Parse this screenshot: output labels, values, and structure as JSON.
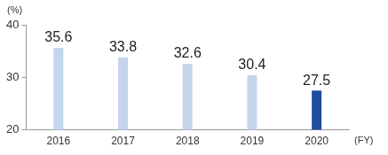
{
  "chart_data": {
    "type": "bar",
    "categories": [
      "2016",
      "2017",
      "2018",
      "2019",
      "2020"
    ],
    "values": [
      35.6,
      33.8,
      32.6,
      30.4,
      27.5
    ],
    "colors": [
      "#c5d5ec",
      "#c5d5ec",
      "#c5d5ec",
      "#c5d5ec",
      "#1f4e9e"
    ],
    "y_label": "(%)",
    "x_label": "(FY)",
    "ylim": [
      20,
      40
    ],
    "yticks": [
      20,
      30,
      40
    ],
    "grid": false,
    "data_labels": true
  }
}
